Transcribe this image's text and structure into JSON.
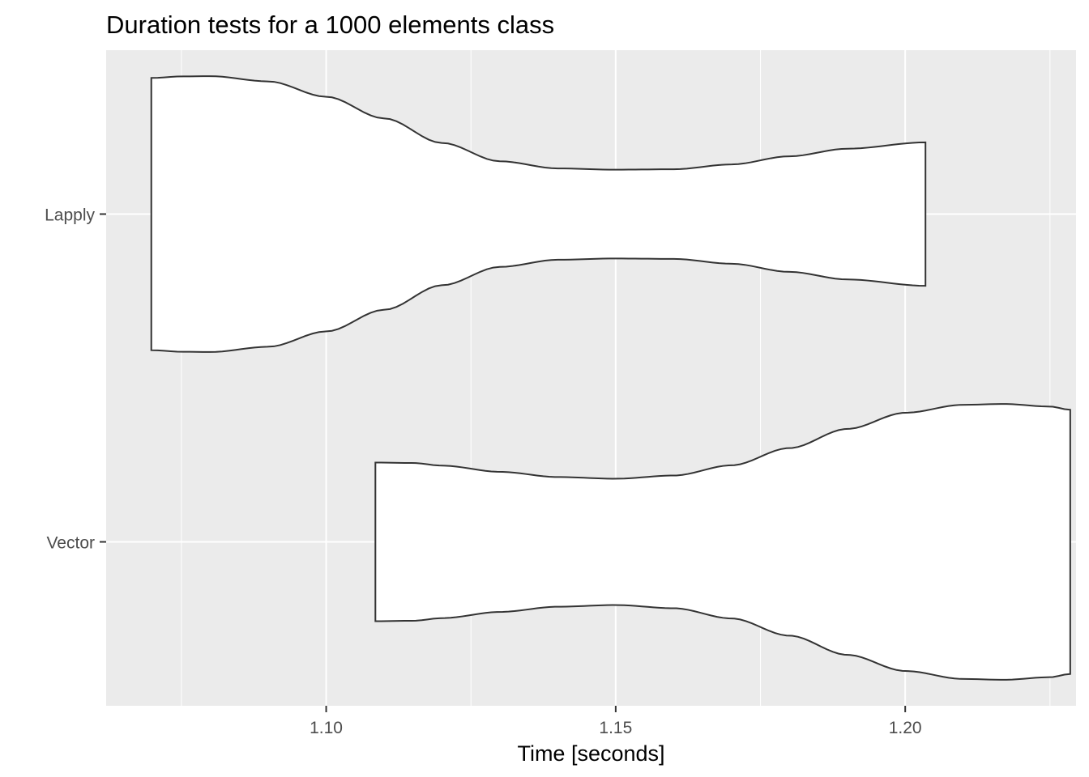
{
  "chart_data": {
    "type": "violin",
    "title": "Duration tests for a  1000  elements  class",
    "xlabel": "Time [seconds]",
    "ylabel": "",
    "xlim": [
      1.062,
      1.2295
    ],
    "x_ticks": [
      1.1,
      1.15,
      1.2
    ],
    "x_tick_labels": [
      "1.10",
      "1.15",
      "1.20"
    ],
    "x_minor_ticks": [
      1.075,
      1.125,
      1.175,
      1.225
    ],
    "categories": [
      "Lapply",
      "Vector"
    ],
    "grid": true,
    "colors": {
      "panel_bg": "#ebebeb",
      "grid": "#ffffff",
      "violin_fill": "#ffffff",
      "violin_stroke": "#333333",
      "tick_text": "#4d4d4d"
    },
    "series": [
      {
        "category": "Lapply",
        "min": 1.0698,
        "max": 1.2035,
        "density_max": 1.0,
        "profile": [
          [
            1.0698,
            0.987
          ],
          [
            1.075,
            0.998
          ],
          [
            1.08,
            1.0
          ],
          [
            1.09,
            0.962
          ],
          [
            1.1,
            0.851
          ],
          [
            1.11,
            0.694
          ],
          [
            1.12,
            0.516
          ],
          [
            1.13,
            0.383
          ],
          [
            1.14,
            0.331
          ],
          [
            1.15,
            0.322
          ],
          [
            1.16,
            0.325
          ],
          [
            1.17,
            0.36
          ],
          [
            1.18,
            0.419
          ],
          [
            1.19,
            0.474
          ],
          [
            1.2035,
            0.52
          ]
        ]
      },
      {
        "category": "Vector",
        "min": 1.1085,
        "max": 1.2285,
        "density_max": 1.0,
        "profile": [
          [
            1.1085,
            0.575
          ],
          [
            1.115,
            0.572
          ],
          [
            1.12,
            0.553
          ],
          [
            1.13,
            0.508
          ],
          [
            1.14,
            0.47
          ],
          [
            1.15,
            0.458
          ],
          [
            1.16,
            0.481
          ],
          [
            1.17,
            0.555
          ],
          [
            1.18,
            0.68
          ],
          [
            1.19,
            0.819
          ],
          [
            1.2,
            0.936
          ],
          [
            1.21,
            0.994
          ],
          [
            1.217,
            1.0
          ],
          [
            1.225,
            0.981
          ],
          [
            1.2285,
            0.958
          ]
        ]
      }
    ]
  }
}
